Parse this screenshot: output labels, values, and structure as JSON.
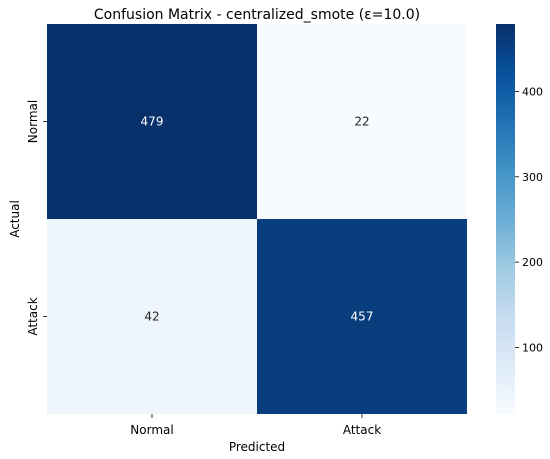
{
  "chart_data": {
    "type": "heatmap",
    "title": "Confusion Matrix - centralized_smote (ε=10.0)",
    "xlabel": "Predicted",
    "ylabel": "Actual",
    "x_categories": [
      "Normal",
      "Attack"
    ],
    "y_categories": [
      "Normal",
      "Attack"
    ],
    "matrix": [
      [
        479,
        22
      ],
      [
        42,
        457
      ]
    ],
    "colormap": "Blues",
    "vmin": 22,
    "vmax": 479,
    "colorbar_ticks": [
      100,
      200,
      300,
      400
    ],
    "colors": {
      "low": "#f7fbff",
      "high": "#08306b",
      "text_dark": "#262626",
      "text_light": "#ffffff"
    }
  }
}
